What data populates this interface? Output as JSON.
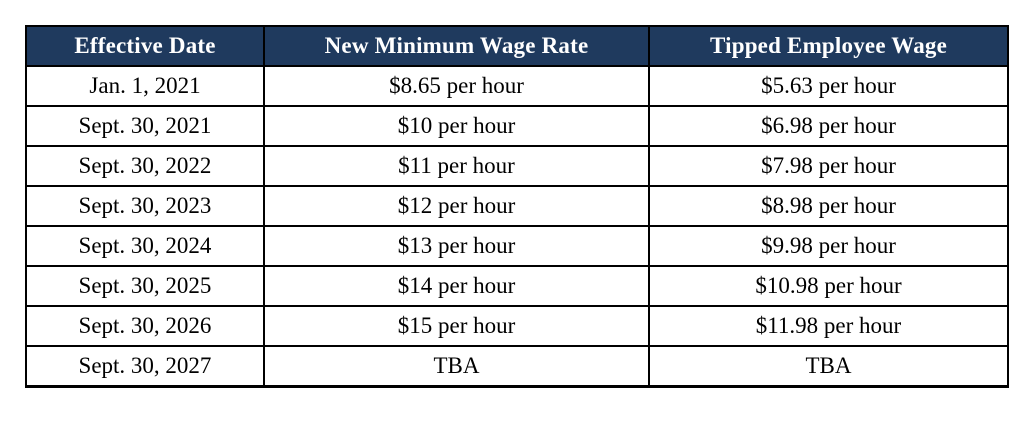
{
  "table": {
    "columns": [
      "Effective Date",
      "New Minimum Wage Rate",
      "Tipped Employee Wage"
    ],
    "rows": [
      [
        "Jan. 1, 2021",
        "$8.65 per hour",
        "$5.63 per hour"
      ],
      [
        "Sept. 30, 2021",
        "$10 per hour",
        "$6.98 per hour"
      ],
      [
        "Sept. 30, 2022",
        "$11 per hour",
        "$7.98 per hour"
      ],
      [
        "Sept. 30, 2023",
        "$12 per hour",
        "$8.98 per hour"
      ],
      [
        "Sept. 30, 2024",
        "$13 per hour",
        "$9.98 per hour"
      ],
      [
        "Sept. 30, 2025",
        "$14 per hour",
        "$10.98 per hour"
      ],
      [
        "Sept. 30, 2026",
        "$15 per hour",
        "$11.98 per hour"
      ],
      [
        "Sept. 30, 2027",
        "TBA",
        "TBA"
      ]
    ]
  },
  "colors": {
    "header_bg": "#1F3A5E",
    "header_text": "#FFFFFF",
    "body_text": "#000000",
    "border": "#000000",
    "page_bg": "#FFFFFF"
  }
}
